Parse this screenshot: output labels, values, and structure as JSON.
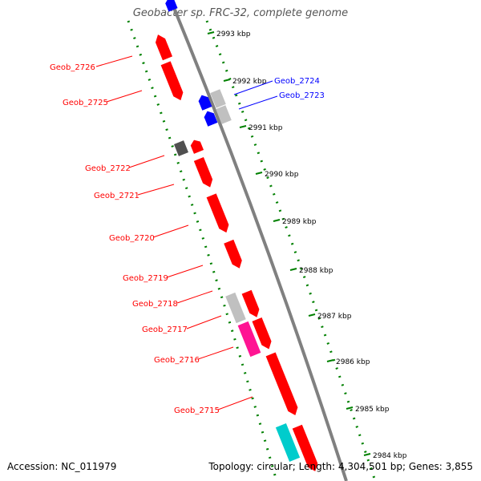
{
  "title": "Geobacter sp. FRC-32, complete genome",
  "accession_text": "Accession: NC_011979",
  "topology_text": "Topology: circular; Length: 4,304,501 bp; Genes: 3,855",
  "kbp_labels": [
    "2993 kbp",
    "2992 kbp",
    "2991 kbp",
    "2990 kbp",
    "2989 kbp",
    "2988 kbp",
    "2987 kbp",
    "2986 kbp",
    "2985 kbp",
    "2984 kbp"
  ],
  "gene_labels": [
    {
      "text": "Geob_2726",
      "color": "#ff0000"
    },
    {
      "text": "Geob_2725",
      "color": "#ff0000"
    },
    {
      "text": "Geob_2724",
      "color": "#0000ff"
    },
    {
      "text": "Geob_2723",
      "color": "#0000ff"
    },
    {
      "text": "Geob_2722",
      "color": "#ff0000"
    },
    {
      "text": "Geob_2721",
      "color": "#ff0000"
    },
    {
      "text": "Geob_2720",
      "color": "#ff0000"
    },
    {
      "text": "Geob_2719",
      "color": "#ff0000"
    },
    {
      "text": "Geob_2718",
      "color": "#ff0000"
    },
    {
      "text": "Geob_2717",
      "color": "#ff0000"
    },
    {
      "text": "Geob_2716",
      "color": "#ff0000"
    },
    {
      "text": "Geob_2715",
      "color": "#ff0000"
    }
  ],
  "colors": {
    "backbone": "#808080",
    "tick_green": "#008000",
    "gene_red": "#ff0000",
    "gene_blue": "#0000ff",
    "gene_grey": "#c0c0c0",
    "gene_dark_grey": "#505050",
    "gene_magenta": "#ff1493",
    "gene_cyan": "#00cccc"
  }
}
